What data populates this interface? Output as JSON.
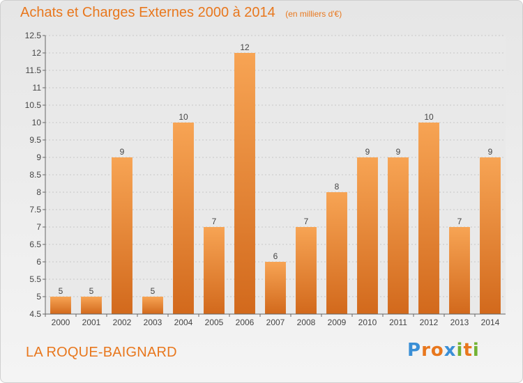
{
  "header": {
    "title": "Achats et Charges Externes 2000 à 2014",
    "unit": "(en milliers d'€)"
  },
  "footer": {
    "commune": "LA ROQUE-BAIGNARD",
    "logo_text": "Proxiti",
    "logo_colors": [
      "#3a8fd6",
      "#e8771d",
      "#e8771d",
      "#3a8fd6",
      "#72b234",
      "#e8771d",
      "#72b234"
    ]
  },
  "chart_data": {
    "type": "bar",
    "categories": [
      "2000",
      "2001",
      "2002",
      "2003",
      "2004",
      "2005",
      "2006",
      "2007",
      "2008",
      "2009",
      "2010",
      "2011",
      "2012",
      "2013",
      "2014"
    ],
    "values": [
      5,
      5,
      9,
      5,
      10,
      7,
      12,
      6,
      7,
      8,
      9,
      9,
      10,
      7,
      9
    ],
    "data_labels": [
      "5",
      "5",
      "9",
      "5",
      "10",
      "7",
      "12",
      "6",
      "7",
      "8",
      "9",
      "9",
      "10",
      "7",
      "9"
    ],
    "ylim": [
      4.5,
      12.5
    ],
    "yticks": [
      "4.5",
      "5",
      "5.5",
      "6",
      "6.5",
      "7",
      "7.5",
      "8",
      "8.5",
      "9",
      "9.5",
      "10",
      "10.5",
      "11",
      "11.5",
      "12",
      "12.5"
    ],
    "grid": true,
    "bar_color": "#f2953e",
    "bar_color_dark": "#d66f1c"
  }
}
